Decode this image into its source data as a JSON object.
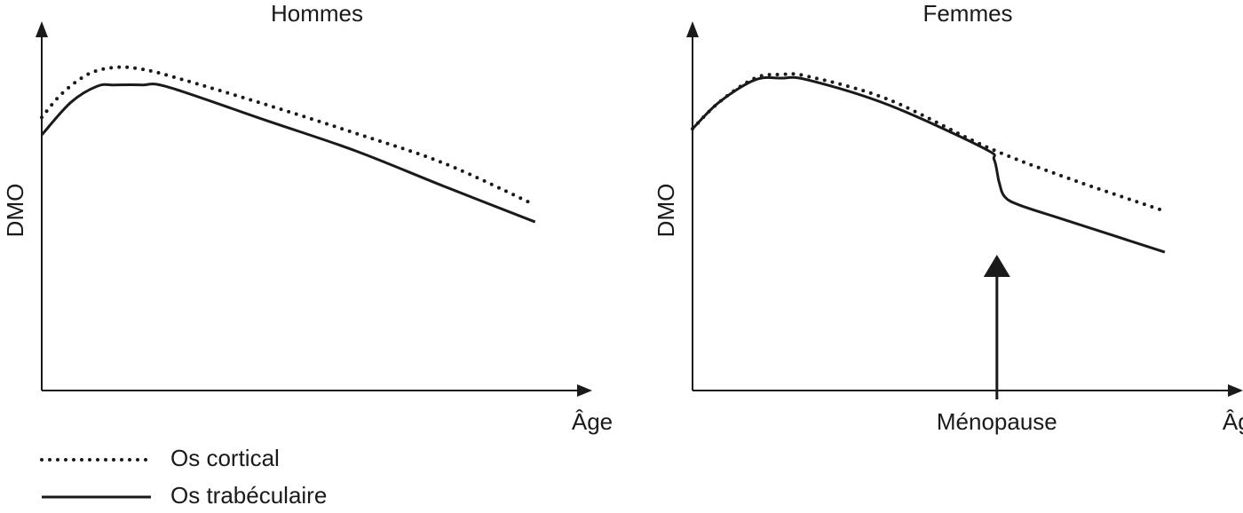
{
  "chart_data": [
    {
      "type": "line",
      "title": "Hommes",
      "x_label": "Âge",
      "y_label": "DMO",
      "xlim": [
        0,
        100
      ],
      "ylim": [
        0,
        100
      ],
      "series": [
        {
          "name": "Os cortical",
          "color": "#1a1a1a",
          "style": "dotted",
          "x": [
            0,
            3.8,
            8.7,
            13.6,
            18.5,
            25.1,
            41.5,
            57.9,
            74.3,
            90.7
          ],
          "values": [
            76.0,
            82.7,
            88.1,
            89.9,
            89.4,
            86.9,
            79.5,
            71.6,
            63.2,
            51.9
          ]
        },
        {
          "name": "Os trabéculaire",
          "color": "#1a1a1a",
          "style": "solid",
          "x": [
            0,
            5.4,
            10.3,
            13.6,
            18.5,
            23.4,
            41.5,
            57.9,
            74.3,
            91.1
          ],
          "values": [
            71.1,
            80.2,
            84.7,
            85.0,
            85.0,
            84.4,
            75.1,
            66.7,
            56.8,
            46.9
          ]
        }
      ]
    },
    {
      "type": "line",
      "title": "Femmes",
      "x_label": "Âge",
      "y_label": "DMO",
      "xlim": [
        0,
        100
      ],
      "ylim": [
        0,
        100
      ],
      "annotation": {
        "text": "Ménopause",
        "x": 56.2
      },
      "series": [
        {
          "color": "#1a1a1a",
          "style": "dotted",
          "x": [
            0,
            4.9,
            11.5,
            16.4,
            21.3,
            36.1,
            54.1,
            68.9,
            87.2
          ],
          "values": [
            72.8,
            80.2,
            86.9,
            87.9,
            87.4,
            81.0,
            67.9,
            59.3,
            49.9
          ]
        },
        {
          "color": "#1a1a1a",
          "style": "solid",
          "x": [
            0,
            4.9,
            11.5,
            16.4,
            21.3,
            36.1,
            53.8,
            55.7,
            56.6,
            57.7,
            60.7,
            68.9,
            87.2
          ],
          "values": [
            72.8,
            80.2,
            86.4,
            86.9,
            86.4,
            79.5,
            67.4,
            64.2,
            58.0,
            53.8,
            51.4,
            47.4,
            38.5
          ]
        }
      ]
    }
  ]
}
